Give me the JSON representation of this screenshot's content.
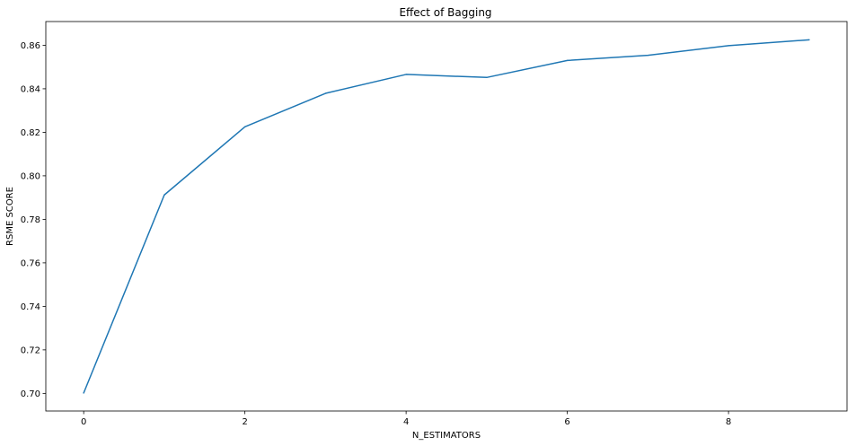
{
  "chart_data": {
    "type": "line",
    "title": "Effect of Bagging",
    "xlabel": "N_ESTIMATORS",
    "ylabel": "RSME SCORE",
    "x": [
      0,
      1,
      2,
      3,
      4,
      5,
      6,
      7,
      8,
      9
    ],
    "series": [
      {
        "values": [
          0.7002,
          0.7912,
          0.8225,
          0.8379,
          0.8466,
          0.8452,
          0.853,
          0.8554,
          0.8598,
          0.8625
        ],
        "color": "#1f77b4"
      }
    ],
    "xlim": [
      -0.47,
      9.47
    ],
    "ylim": [
      0.6919,
      0.8709
    ],
    "xticks": [
      0,
      2,
      4,
      6,
      8
    ],
    "xtick_labels": [
      "0",
      "2",
      "4",
      "6",
      "8"
    ],
    "yticks": [
      0.7,
      0.72,
      0.74,
      0.76,
      0.78,
      0.8,
      0.82,
      0.84,
      0.86
    ],
    "ytick_labels": [
      "0.70",
      "0.72",
      "0.74",
      "0.76",
      "0.78",
      "0.80",
      "0.82",
      "0.84",
      "0.86"
    ],
    "grid": false,
    "legend": "none"
  }
}
